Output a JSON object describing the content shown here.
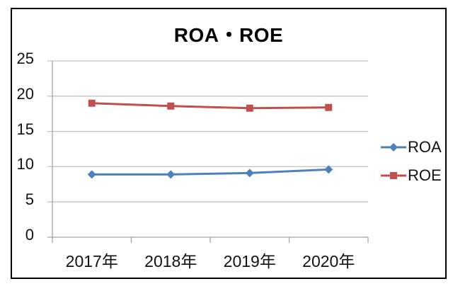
{
  "chart_data": {
    "type": "line",
    "title": "ROA・ROE",
    "categories": [
      "2017年",
      "2018年",
      "2019年",
      "2020年"
    ],
    "series": [
      {
        "name": "ROA",
        "values": [
          8.9,
          8.9,
          9.1,
          9.6
        ],
        "color": "#4F81BD",
        "marker": "diamond"
      },
      {
        "name": "ROE",
        "values": [
          19.0,
          18.6,
          18.3,
          18.4
        ],
        "color": "#C0504D",
        "marker": "square"
      }
    ],
    "ylim": [
      0,
      25
    ],
    "yticks": [
      0,
      5,
      10,
      15,
      20,
      25
    ],
    "grid": true,
    "legend_position": "right",
    "colors": {
      "gridline": "#C3C3C3",
      "axis": "#A3A3A3",
      "frame_border": "#000000",
      "text": "#111111"
    }
  }
}
